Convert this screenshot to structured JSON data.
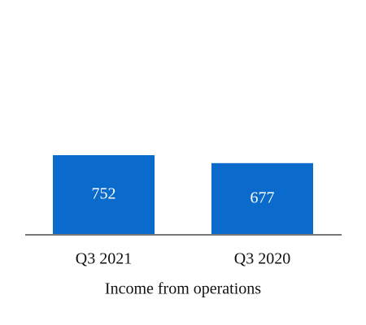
{
  "chart_data": {
    "type": "bar",
    "title": "Income from operations",
    "categories": [
      "Q3 2021",
      "Q3 2020"
    ],
    "values": [
      752,
      677
    ],
    "color": "#0a6bcc"
  }
}
